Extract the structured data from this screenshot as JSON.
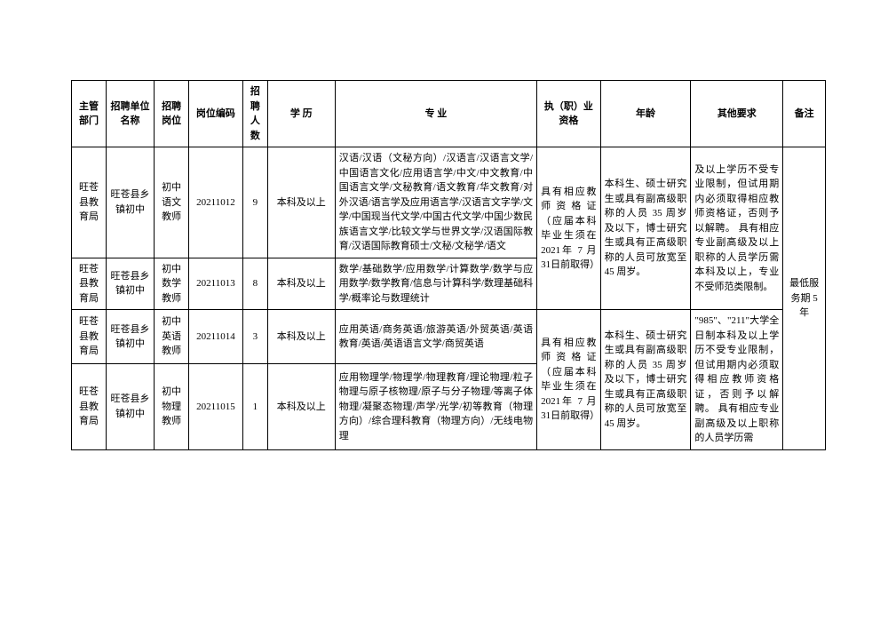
{
  "headers": {
    "dept": "主管部门",
    "unit": "招聘单位名称",
    "post": "招聘岗位",
    "code": "岗位编码",
    "num": "招聘人数",
    "edu": "学 历",
    "major": "专   业",
    "qual": "执（职）业资格",
    "age": "年龄",
    "other": "其他要求",
    "note": "备注"
  },
  "rows": [
    {
      "dept": "旺苍县教育局",
      "unit": "旺苍县乡镇初中",
      "post": "初中语文教师",
      "code": "20211012",
      "num": "9",
      "edu": "本科及以上",
      "major": "汉语/汉语（文秘方向）/汉语言/汉语言文学/中国语言文化/应用语言学/中文/中文教育/中国语言文学/文秘教育/语文教育/华文教育/对外汉语/语言学及应用语言学/汉语言文字学/文学/中国现当代文学/中国古代文学/中国少数民族语言文学/比较文学与世界文学/汉语国际教育/汉语国际教育硕士/文秘/文秘学/语文"
    },
    {
      "dept": "旺苍县教育局",
      "unit": "旺苍县乡镇初中",
      "post": "初中数学教师",
      "code": "20211013",
      "num": "8",
      "edu": "本科及以上",
      "major": "数学/基础数学/应用数学/计算数学/数学与应用数学/数学教育/信息与计算科学/数理基础科学/概率论与数理统计"
    },
    {
      "dept": "旺苍县教育局",
      "unit": "旺苍县乡镇初中",
      "post": "初中英语教师",
      "code": "20211014",
      "num": "3",
      "edu": "本科及以上",
      "major": "应用英语/商务英语/旅游英语/外贸英语/英语教育/英语/英语语言文学/商贸英语"
    },
    {
      "dept": "旺苍县教育局",
      "unit": "旺苍县乡镇初中",
      "post": "初中物理教师",
      "code": "20211015",
      "num": "1",
      "edu": "本科及以上",
      "major": "应用物理学/物理学/物理教育/理论物理/粒子物理与原子核物理/原子与分子物理/等离子体物理/凝聚态物理/声学/光学/初等教育（物理方向）/综合理科教育（物理方向）/无线电物理"
    }
  ],
  "qual_group1": "具有相应教师资格证（应届本科毕业生须在 2021年 7 月 31日前取得）",
  "qual_group2": "具有相应教师资格证（应届本科毕业生须在 2021年 7 月 31日前取得）",
  "age_group1": "本科生、硕士研究生或具有副高级职称的人员 35 周岁及以下，博士研究生或具有正高级职称的人员可放宽至 45 周岁。",
  "age_group2": "本科生、硕士研究生或具有副高级职称的人员 35 周岁及以下，博士研究生或具有正高级职称的人员可放宽至 45 周岁。",
  "other_group1": "及以上学历不受专业限制，但试用期内必须取得相应教师资格证，否则予以解聘。  具有相应专业副高级及以上职称的人员学历需本科及以上，专业不受师范类限制。",
  "other_group2": "\"985\"、\"211\"大学全日制本科及以上学历不受专业限制，但试用期内必须取得相应教师资格证，否则予以解聘。  具有相应专业副高级及以上职称的人员学历需",
  "note_group": "最低服务期 5 年"
}
